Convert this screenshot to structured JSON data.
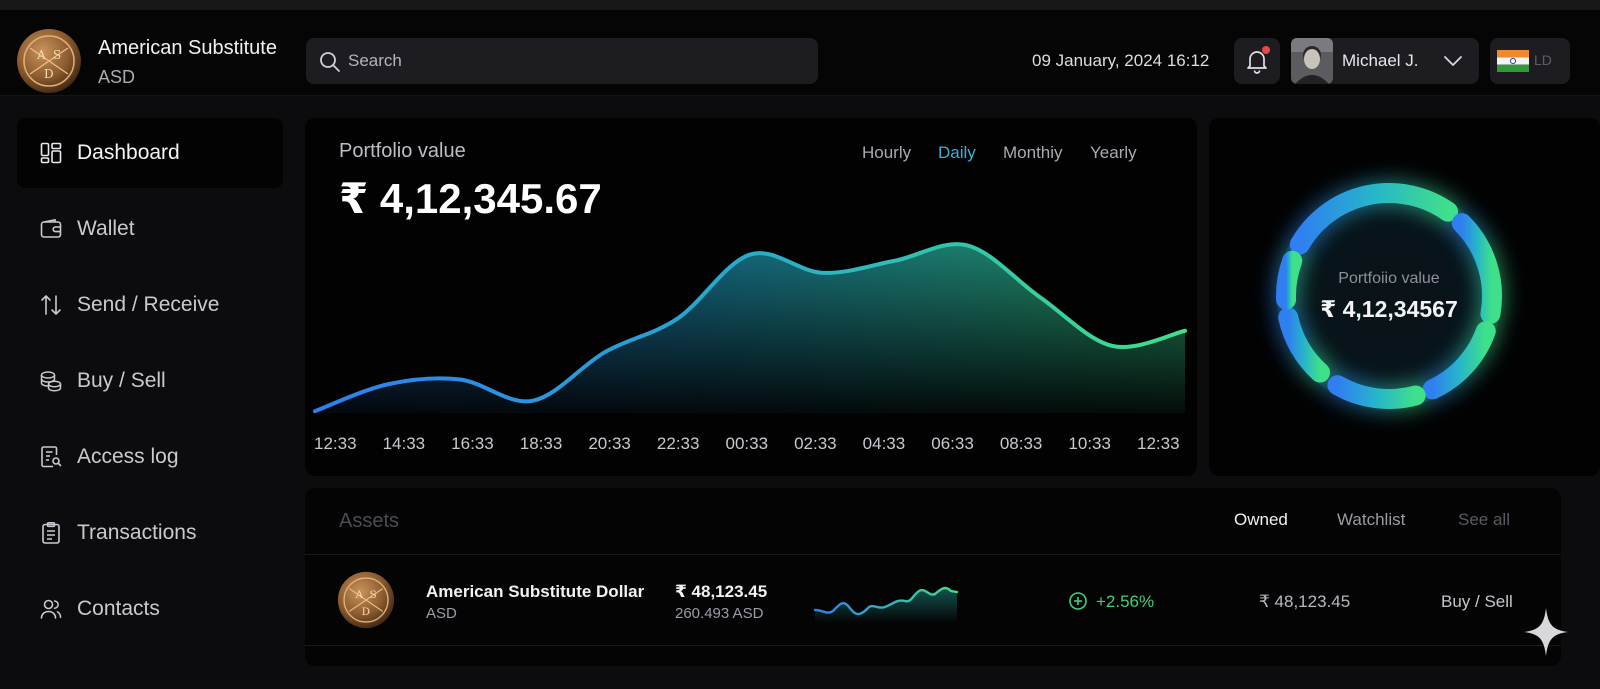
{
  "app": {
    "name": "American Substitute",
    "ticker": "ASD",
    "logo_letters": [
      "A",
      "S",
      "D"
    ]
  },
  "header": {
    "search_placeholder": "Search",
    "datetime": "09 January, 2024 16:12",
    "user_name": "Michael J.",
    "language": "LD"
  },
  "sidebar": {
    "items": [
      {
        "label": "Dashboard",
        "icon": "dashboard-icon",
        "active": true
      },
      {
        "label": "Wallet",
        "icon": "wallet-icon"
      },
      {
        "label": "Send / Receive",
        "icon": "arrows-up-down-icon"
      },
      {
        "label": "Buy / Sell",
        "icon": "coins-stack-icon"
      },
      {
        "label": "Access log",
        "icon": "access-log-icon"
      },
      {
        "label": "Transactions",
        "icon": "clipboard-icon"
      },
      {
        "label": "Contacts",
        "icon": "contacts-icon"
      }
    ]
  },
  "portfolio": {
    "title": "Portfolio value",
    "value": "₹ 4,12,345.67",
    "tabs": [
      "Hourly",
      "Daily",
      "Monthiy",
      "Yearly"
    ],
    "active_tab": "Daily"
  },
  "ring": {
    "title": "Portfoiio value",
    "value": "₹ 4,12,34567"
  },
  "assets": {
    "title": "Assets",
    "tabs": [
      "Owned",
      "Watchlist",
      "See all"
    ],
    "rows": [
      {
        "name": "American Substitute Dollar",
        "symbol": "ASD",
        "price": "₹ 48,123.45",
        "quantity": "260.493 ASD",
        "change": "+2.56%",
        "holding": "₹ 48,123.45",
        "action": "Buy / Sell"
      }
    ]
  },
  "colors": {
    "accent_blue": "#2f7ff0",
    "accent_teal": "#27b5c9",
    "accent_green": "#3fe08a",
    "notification": "#e5484d",
    "positive": "#3fd07a"
  },
  "chart_data": {
    "type": "area",
    "title": "Portfolio value",
    "x": [
      "12:33",
      "14:33",
      "16:33",
      "18:33",
      "20:33",
      "22:33",
      "00:33",
      "02:33",
      "04:33",
      "06:33",
      "08:33",
      "10:33",
      "12:33"
    ],
    "values": [
      3,
      47,
      55,
      20,
      100,
      155,
      260,
      230,
      250,
      275,
      190,
      110,
      135
    ],
    "ylim": [
      0,
      320
    ]
  }
}
